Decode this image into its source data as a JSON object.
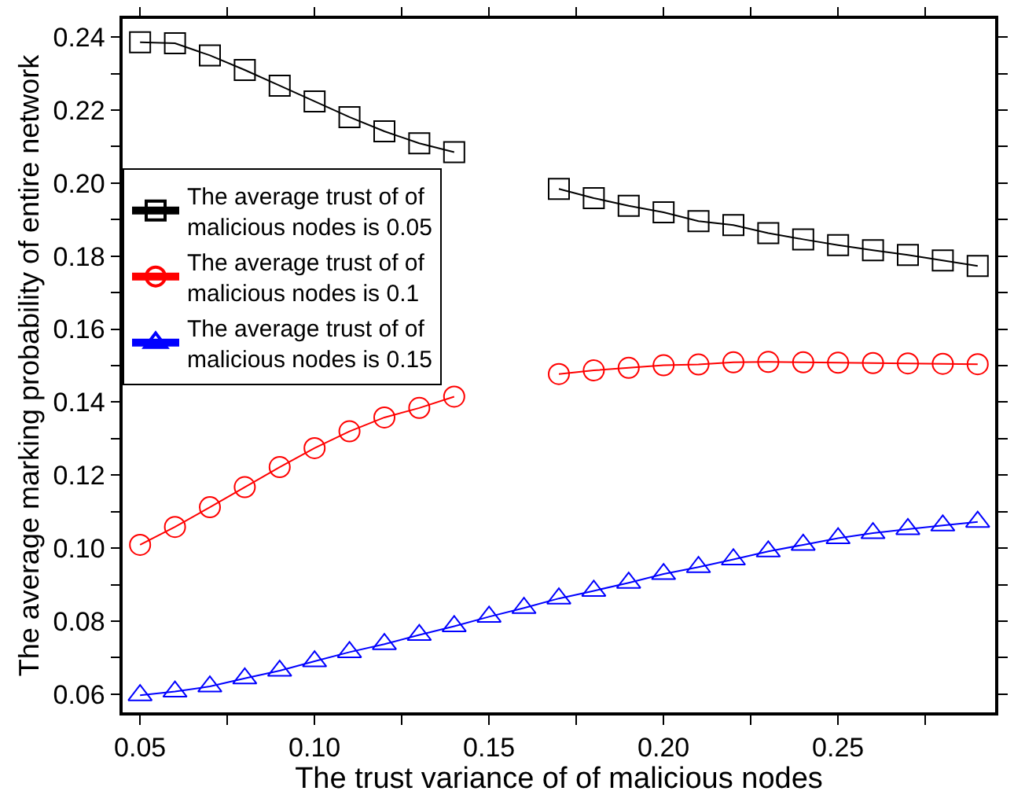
{
  "chart_data": {
    "type": "line",
    "xlabel": "The trust variance of of malicious nodes",
    "ylabel": "The average marking probability of entire network",
    "x": [
      0.05,
      0.06,
      0.07,
      0.08,
      0.09,
      0.1,
      0.11,
      0.12,
      0.13,
      0.14,
      0.15,
      0.16,
      0.17,
      0.18,
      0.19,
      0.2,
      0.21,
      0.22,
      0.23,
      0.24,
      0.25,
      0.26,
      0.27,
      0.28,
      0.29
    ],
    "series": [
      {
        "name": "The average trust of of\nmalicious nodes is 0.05",
        "color": "#000000",
        "marker": "square",
        "values": [
          0.2386,
          0.2383,
          0.235,
          0.231,
          0.2267,
          0.2224,
          0.2181,
          0.2142,
          0.2109,
          0.2085,
          null,
          null,
          0.1984,
          0.1959,
          0.1938,
          0.192,
          0.1896,
          0.1885,
          0.1863,
          0.1846,
          0.183,
          0.1816,
          0.1803,
          0.1788,
          0.1773
        ]
      },
      {
        "name": "The average trust of of\nmalicious nodes is 0.1",
        "color": "#ff0000",
        "marker": "circle",
        "values": [
          0.1009,
          0.1058,
          0.1112,
          0.1167,
          0.1222,
          0.1274,
          0.132,
          0.1358,
          0.1384,
          0.1415,
          null,
          null,
          0.1477,
          0.1487,
          0.1494,
          0.1501,
          0.1503,
          0.1509,
          0.151,
          0.1509,
          0.1508,
          0.1507,
          0.1506,
          0.1505,
          0.1504
        ]
      },
      {
        "name": "The average trust of of\nmalicious nodes is 0.15",
        "color": "#0000ff",
        "marker": "triangle",
        "values": [
          0.0597,
          0.0607,
          0.0621,
          0.0643,
          0.0664,
          0.069,
          0.0715,
          0.0737,
          0.0762,
          0.0786,
          0.0812,
          0.0836,
          0.0862,
          0.0883,
          0.0905,
          0.0929,
          0.0948,
          0.0969,
          0.0991,
          0.1009,
          0.1027,
          0.1041,
          0.1052,
          0.1062,
          0.1072
        ]
      }
    ],
    "xlim": [
      0.045,
      0.295
    ],
    "ylim": [
      0.055,
      0.245
    ],
    "xticks": [
      {
        "value": 0.05,
        "label": "0.05"
      },
      {
        "value": 0.075,
        "label": null
      },
      {
        "value": 0.1,
        "label": "0.10"
      },
      {
        "value": 0.125,
        "label": null
      },
      {
        "value": 0.15,
        "label": "0.15"
      },
      {
        "value": 0.175,
        "label": null
      },
      {
        "value": 0.2,
        "label": "0.20"
      },
      {
        "value": 0.225,
        "label": null
      },
      {
        "value": 0.25,
        "label": "0.25"
      },
      {
        "value": 0.275,
        "label": null
      }
    ],
    "yticks": [
      {
        "value": 0.06,
        "label": "0.06"
      },
      {
        "value": 0.07,
        "label": null
      },
      {
        "value": 0.08,
        "label": "0.08"
      },
      {
        "value": 0.09,
        "label": null
      },
      {
        "value": 0.1,
        "label": "0.10"
      },
      {
        "value": 0.11,
        "label": null
      },
      {
        "value": 0.12,
        "label": "0.12"
      },
      {
        "value": 0.13,
        "label": null
      },
      {
        "value": 0.14,
        "label": "0.14"
      },
      {
        "value": 0.15,
        "label": null
      },
      {
        "value": 0.16,
        "label": "0.16"
      },
      {
        "value": 0.17,
        "label": null
      },
      {
        "value": 0.18,
        "label": "0.18"
      },
      {
        "value": 0.19,
        "label": null
      },
      {
        "value": 0.2,
        "label": "0.20"
      },
      {
        "value": 0.21,
        "label": null
      },
      {
        "value": 0.22,
        "label": "0.22"
      },
      {
        "value": 0.23,
        "label": null
      },
      {
        "value": 0.24,
        "label": "0.24"
      }
    ],
    "legend": "left",
    "line_style": "solid"
  }
}
